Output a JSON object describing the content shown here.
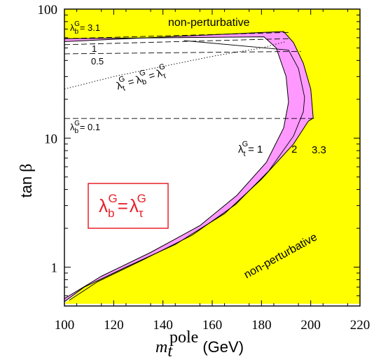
{
  "chart_data": {
    "type": "area",
    "xlabel": "m_t^pole (GeV)",
    "xlabel_parts": {
      "symbol": "m",
      "subscript": "t",
      "superscript": "pole",
      "unit": "(GeV)"
    },
    "ylabel": "tan β",
    "ylabel_parts": {
      "text": "tan",
      "symbol": "β"
    },
    "xlim": [
      100,
      220
    ],
    "ylim": [
      0.5,
      100
    ],
    "yscale": "log",
    "x_ticks": [
      "100",
      "120",
      "140",
      "160",
      "180",
      "200",
      "220"
    ],
    "y_ticks": [
      "1",
      "10",
      "100"
    ],
    "grid": false,
    "colors": {
      "non_perturbative": "#ffff00",
      "band": "#ff99ff",
      "box_text": "#e8202a"
    },
    "regions": [
      {
        "label": "non-perturbative",
        "fill": "#ffff00",
        "points": [
          [
            100,
            0.52
          ],
          [
            108,
            0.7
          ],
          [
            125,
            1.0
          ],
          [
            145,
            1.5
          ],
          [
            165,
            2.6
          ],
          [
            180,
            4.8
          ],
          [
            193,
            9.0
          ],
          [
            199,
            13.5
          ],
          [
            201,
            14.3
          ],
          [
            200,
            24
          ],
          [
            197,
            38
          ],
          [
            193,
            55
          ],
          [
            189,
            67
          ],
          [
            100,
            56
          ],
          [
            100,
            100
          ],
          [
            220,
            100
          ],
          [
            220,
            0.52
          ]
        ]
      }
    ],
    "band": {
      "name": "λ_t^G = 1 – 3.3",
      "fill": "#ff99ff",
      "outer": [
        [
          100,
          0.54
        ],
        [
          108,
          0.7
        ],
        [
          125,
          1.0
        ],
        [
          145,
          1.5
        ],
        [
          165,
          2.6
        ],
        [
          180,
          4.8
        ],
        [
          193,
          9.0
        ],
        [
          199,
          13.5
        ],
        [
          201,
          14.3
        ],
        [
          200,
          24
        ],
        [
          197,
          38
        ],
        [
          193,
          55
        ],
        [
          189,
          67
        ],
        [
          100,
          56
        ],
        [
          100,
          61
        ],
        [
          186,
          60
        ],
        [
          191,
          64
        ],
        [
          196,
          54
        ],
        [
          198,
          38
        ]
      ],
      "inner": [
        [
          100,
          0.57
        ],
        [
          115,
          0.85
        ],
        [
          135,
          1.3
        ],
        [
          155,
          2.1
        ],
        [
          170,
          3.6
        ],
        [
          182,
          6.5
        ],
        [
          189,
          12
        ],
        [
          191,
          19
        ],
        [
          190,
          30
        ],
        [
          186,
          50
        ],
        [
          181,
          61
        ],
        [
          100,
          59
        ]
      ]
    },
    "series": [
      {
        "name": "λ_t^G = λ_b^G = λ_τ^G",
        "style": "dotted",
        "x": [
          100,
          120,
          140,
          160,
          180,
          190
        ],
        "y": [
          24,
          30,
          36,
          43,
          50,
          56
        ]
      },
      {
        "name": "λ_b^G = 3.1",
        "style": "dashed",
        "x": [
          100,
          191
        ],
        "y": [
          59,
          66
        ]
      },
      {
        "name": "λ_b^G = 1",
        "style": "dashed",
        "x": [
          100,
          191
        ],
        "y": [
          53,
          59
        ]
      },
      {
        "name": "λ_b^G = 0.5",
        "style": "dashed",
        "x": [
          100,
          196
        ],
        "y": [
          45,
          47
        ]
      },
      {
        "name": "λ_b^G = 0.1",
        "style": "dashed",
        "x": [
          100,
          202
        ],
        "y": [
          14.2,
          14.2
        ]
      }
    ],
    "annotations": {
      "non_perturbative_top": "non-perturbative",
      "non_perturbative_bottom": "non-perturbative",
      "lb_31": {
        "sym": "λ",
        "sub": "b",
        "sup": "G",
        "rest": "= 3.1"
      },
      "lb_1": "1",
      "lb_05": "0.5",
      "lb_01": {
        "sym": "λ",
        "sub": "b",
        "sup": "G",
        "rest": "= 0.1"
      },
      "triple": {
        "sym": "λ",
        "sub1": "t",
        "sub2": "b",
        "sub3": "τ",
        "sup": "G",
        "eq": "="
      },
      "lt_1": {
        "sym": "λ",
        "sub": "t",
        "sup": "G",
        "rest": "= 1"
      },
      "lt_2": "2",
      "lt_33": "3.3",
      "box": {
        "sym": "λ",
        "sub1": "b",
        "sub2": "τ",
        "sup": "G",
        "eq": "="
      }
    }
  }
}
